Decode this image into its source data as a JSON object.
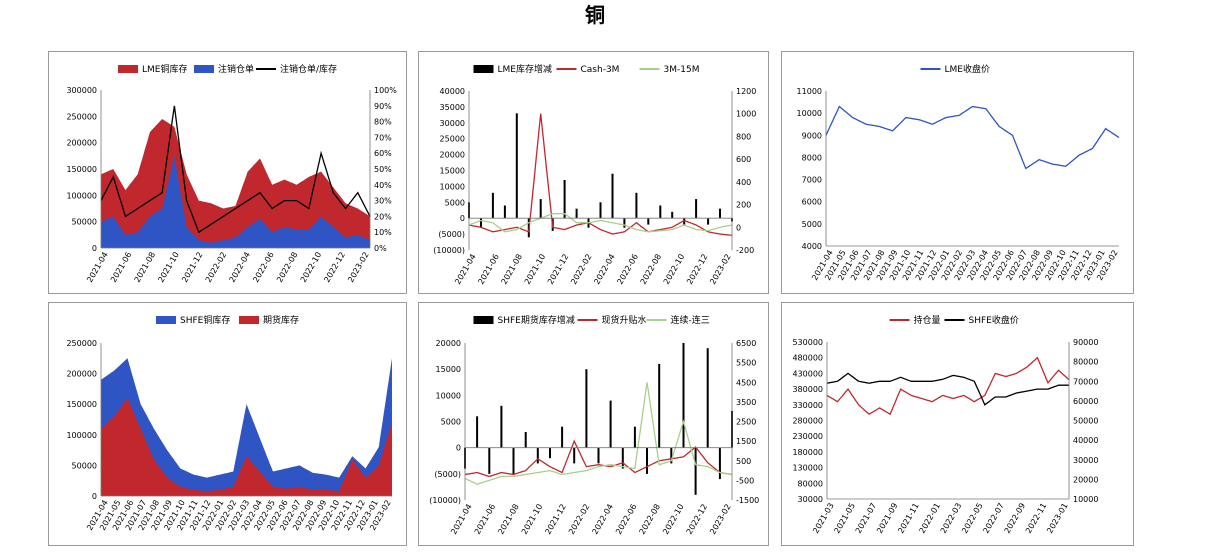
{
  "page": {
    "title": "铜"
  },
  "colors": {
    "red": "#c0282e",
    "blue": "#2f55c4",
    "black": "#000000",
    "green": "#a8d08d"
  },
  "chart_data": [
    {
      "id": "c1",
      "type": "area",
      "legend": [
        "LME铜库存",
        "注销仓单",
        "注销仓单/库存"
      ],
      "legend_position": "top",
      "x_ticks": [
        "2021-04",
        "2021-06",
        "2021-08",
        "2021-10",
        "2021-12",
        "2022-02",
        "2022-04",
        "2022-06",
        "2022-08",
        "2022-10",
        "2022-12",
        "2023-02"
      ],
      "y_ticks": [
        "300000",
        "250000",
        "200000",
        "150000",
        "100000",
        "50000",
        "0"
      ],
      "y2_ticks": [
        "100%",
        "90%",
        "80%",
        "70%",
        "60%",
        "50%",
        "40%",
        "30%",
        "20%",
        "10%",
        "0%"
      ],
      "ylim": [
        0,
        300000
      ],
      "y2lim": [
        0,
        100
      ],
      "x": [
        "2021-04",
        "2021-05",
        "2021-06",
        "2021-07",
        "2021-08",
        "2021-09",
        "2021-10",
        "2021-11",
        "2021-12",
        "2022-01",
        "2022-02",
        "2022-03",
        "2022-04",
        "2022-05",
        "2022-06",
        "2022-07",
        "2022-08",
        "2022-09",
        "2022-10",
        "2022-11",
        "2022-12",
        "2023-01",
        "2023-02"
      ],
      "series": [
        {
          "name": "LME铜库存",
          "kind": "area",
          "values": [
            140000,
            150000,
            110000,
            140000,
            220000,
            245000,
            230000,
            140000,
            90000,
            85000,
            75000,
            80000,
            145000,
            170000,
            120000,
            130000,
            120000,
            135000,
            145000,
            115000,
            85000,
            75000,
            60000
          ]
        },
        {
          "name": "注销仓单",
          "kind": "area",
          "values": [
            50000,
            60000,
            25000,
            30000,
            60000,
            75000,
            175000,
            40000,
            15000,
            10000,
            15000,
            20000,
            40000,
            55000,
            30000,
            40000,
            35000,
            35000,
            60000,
            40000,
            20000,
            25000,
            15000
          ]
        },
        {
          "name": "注销仓单/库存",
          "kind": "line",
          "axis": "right",
          "values": [
            30,
            45,
            20,
            25,
            30,
            35,
            90,
            30,
            10,
            15,
            20,
            25,
            30,
            35,
            25,
            30,
            30,
            25,
            60,
            35,
            25,
            35,
            20
          ]
        }
      ]
    },
    {
      "id": "c2",
      "type": "bar",
      "legend": [
        "LME库存增减",
        "Cash-3M",
        "3M-15M"
      ],
      "legend_position": "top",
      "x_ticks": [
        "2021-04",
        "2021-06",
        "2021-08",
        "2021-10",
        "2021-12",
        "2022-02",
        "2022-04",
        "2022-06",
        "2022-08",
        "2022-10",
        "2022-12",
        "2023-02"
      ],
      "y_ticks": [
        "40000",
        "35000",
        "30000",
        "25000",
        "20000",
        "15000",
        "10000",
        "5000",
        "0",
        "(5000)",
        "(10000)"
      ],
      "y2_ticks": [
        "1200",
        "1000",
        "800",
        "600",
        "400",
        "200",
        "0",
        "-200"
      ],
      "ylim": [
        -10000,
        40000
      ],
      "y2lim": [
        -200,
        1200
      ],
      "x": [
        "2021-04",
        "2021-05",
        "2021-06",
        "2021-07",
        "2021-08",
        "2021-09",
        "2021-10",
        "2021-11",
        "2021-12",
        "2022-01",
        "2022-02",
        "2022-03",
        "2022-04",
        "2022-05",
        "2022-06",
        "2022-07",
        "2022-08",
        "2022-09",
        "2022-10",
        "2022-11",
        "2022-12",
        "2023-01",
        "2023-02"
      ],
      "series": [
        {
          "name": "LME库存增减",
          "kind": "bar",
          "values": [
            5000,
            -3000,
            8000,
            4000,
            33000,
            -6000,
            6000,
            -4000,
            12000,
            3000,
            -3000,
            5000,
            14000,
            -3000,
            8000,
            -2000,
            4000,
            2000,
            -2000,
            6000,
            -2000,
            3000,
            -1000
          ]
        },
        {
          "name": "Cash-3M",
          "kind": "line",
          "axis": "right",
          "values": [
            20,
            0,
            -40,
            -20,
            0,
            -40,
            1000,
            0,
            -20,
            20,
            40,
            -20,
            -60,
            -40,
            40,
            -40,
            -20,
            0,
            60,
            20,
            -40,
            -60,
            -70
          ]
        },
        {
          "name": "3M-15M",
          "kind": "line",
          "axis": "right",
          "values": [
            20,
            60,
            40,
            -40,
            -20,
            40,
            80,
            120,
            120,
            40,
            40,
            60,
            40,
            20,
            -20,
            -40,
            -30,
            -20,
            20,
            -20,
            -30,
            0,
            20
          ]
        }
      ]
    },
    {
      "id": "c3",
      "type": "line",
      "legend": [
        "LME收盘价"
      ],
      "legend_position": "top",
      "x_ticks": [
        "2021-04",
        "2021-05",
        "2021-06",
        "2021-07",
        "2021-08",
        "2021-09",
        "2021-10",
        "2021-11",
        "2021-12",
        "2022-01",
        "2022-02",
        "2022-03",
        "2022-04",
        "2022-05",
        "2022-06",
        "2022-07",
        "2022-08",
        "2022-09",
        "2022-10",
        "2022-11",
        "2022-12",
        "2023-01",
        "2023-02"
      ],
      "y_ticks": [
        "11000",
        "10000",
        "9000",
        "8000",
        "7000",
        "6000",
        "5000",
        "4000"
      ],
      "ylim": [
        4000,
        11000
      ],
      "x": [
        "2021-04",
        "2021-05",
        "2021-06",
        "2021-07",
        "2021-08",
        "2021-09",
        "2021-10",
        "2021-11",
        "2021-12",
        "2022-01",
        "2022-02",
        "2022-03",
        "2022-04",
        "2022-05",
        "2022-06",
        "2022-07",
        "2022-08",
        "2022-09",
        "2022-10",
        "2022-11",
        "2022-12",
        "2023-01",
        "2023-02"
      ],
      "series": [
        {
          "name": "LME收盘价",
          "kind": "line",
          "values": [
            9000,
            10300,
            9800,
            9500,
            9400,
            9200,
            9800,
            9700,
            9500,
            9800,
            9900,
            10300,
            10200,
            9400,
            9000,
            7500,
            7900,
            7700,
            7600,
            8100,
            8400,
            9300,
            8900
          ]
        }
      ]
    },
    {
      "id": "c4",
      "type": "area",
      "legend": [
        "SHFE铜库存",
        "期货库存"
      ],
      "legend_position": "top",
      "x_ticks": [
        "2021-04",
        "2021-05",
        "2021-06",
        "2021-07",
        "2021-08",
        "2021-09",
        "2021-10",
        "2021-11",
        "2021-12",
        "2022-01",
        "2022-02",
        "2022-03",
        "2022-04",
        "2022-05",
        "2022-06",
        "2022-07",
        "2022-08",
        "2022-09",
        "2022-10",
        "2022-11",
        "2022-12",
        "2023-01",
        "2023-02"
      ],
      "y_ticks": [
        "250000",
        "200000",
        "150000",
        "100000",
        "50000",
        "0"
      ],
      "ylim": [
        0,
        250000
      ],
      "x": [
        "2021-04",
        "2021-05",
        "2021-06",
        "2021-07",
        "2021-08",
        "2021-09",
        "2021-10",
        "2021-11",
        "2021-12",
        "2022-01",
        "2022-02",
        "2022-03",
        "2022-04",
        "2022-05",
        "2022-06",
        "2022-07",
        "2022-08",
        "2022-09",
        "2022-10",
        "2022-11",
        "2022-12",
        "2023-01",
        "2023-02"
      ],
      "series": [
        {
          "name": "SHFE铜库存",
          "kind": "area",
          "values": [
            190000,
            205000,
            225000,
            150000,
            110000,
            75000,
            45000,
            35000,
            30000,
            35000,
            40000,
            150000,
            95000,
            40000,
            45000,
            50000,
            38000,
            35000,
            30000,
            65000,
            45000,
            80000,
            225000
          ]
        },
        {
          "name": "期货库存",
          "kind": "area",
          "values": [
            110000,
            130000,
            160000,
            110000,
            60000,
            30000,
            15000,
            10000,
            8000,
            10000,
            15000,
            65000,
            40000,
            15000,
            12000,
            15000,
            10000,
            10000,
            8000,
            60000,
            30000,
            50000,
            120000
          ]
        }
      ]
    },
    {
      "id": "c5",
      "type": "bar",
      "legend": [
        "SHFE期货库存增减",
        "现货升贴水",
        "连续-连三"
      ],
      "legend_position": "top",
      "x_ticks": [
        "2021-04",
        "2021-06",
        "2021-08",
        "2021-10",
        "2021-12",
        "2022-02",
        "2022-04",
        "2022-06",
        "2022-08",
        "2022-10",
        "2022-12",
        "2023-02"
      ],
      "y_ticks": [
        "20000",
        "15000",
        "10000",
        "5000",
        "0",
        "(5000)",
        "(10000)"
      ],
      "y2_ticks": [
        "6500",
        "5500",
        "4500",
        "3500",
        "2500",
        "1500",
        "500",
        "-500",
        "-1500"
      ],
      "ylim": [
        -10000,
        20000
      ],
      "y2lim": [
        -1500,
        6500
      ],
      "x": [
        "2021-04",
        "2021-05",
        "2021-06",
        "2021-07",
        "2021-08",
        "2021-09",
        "2021-10",
        "2021-11",
        "2021-12",
        "2022-01",
        "2022-02",
        "2022-03",
        "2022-04",
        "2022-05",
        "2022-06",
        "2022-07",
        "2022-08",
        "2022-09",
        "2022-10",
        "2022-11",
        "2022-12",
        "2023-01",
        "2023-02"
      ],
      "series": [
        {
          "name": "SHFE期货库存增减",
          "kind": "bar",
          "values": [
            -4000,
            6000,
            -5000,
            8000,
            -5000,
            3000,
            -3000,
            -2000,
            4000,
            -3000,
            15000,
            -3000,
            9000,
            -4000,
            4000,
            -5000,
            16000,
            -3000,
            20000,
            -9000,
            19000,
            -6000,
            7000
          ]
        },
        {
          "name": "现货升贴水",
          "kind": "line",
          "axis": "right",
          "values": [
            -200,
            -100,
            -300,
            -100,
            -200,
            0,
            600,
            200,
            -100,
            1500,
            200,
            300,
            200,
            400,
            -100,
            200,
            500,
            600,
            700,
            1200,
            400,
            -100,
            -200
          ]
        },
        {
          "name": "连续-连三",
          "kind": "line",
          "axis": "right",
          "values": [
            -400,
            -700,
            -500,
            -300,
            -300,
            -200,
            -100,
            0,
            -200,
            -100,
            0,
            200,
            300,
            200,
            100,
            4500,
            300,
            500,
            2500,
            300,
            200,
            -100,
            -200
          ]
        }
      ]
    },
    {
      "id": "c6",
      "type": "line",
      "legend": [
        "持仓量",
        "SHFE收盘价"
      ],
      "legend_position": "top",
      "x_ticks": [
        "2021-03",
        "2021-05",
        "2021-07",
        "2021-09",
        "2021-11",
        "2022-01",
        "2022-03",
        "2022-05",
        "2022-07",
        "2022-09",
        "2022-11",
        "2023-01"
      ],
      "y_ticks": [
        "530000",
        "480000",
        "430000",
        "380000",
        "330000",
        "280000",
        "230000",
        "180000",
        "130000",
        "80000",
        "30000"
      ],
      "y2_ticks": [
        "90000",
        "80000",
        "70000",
        "60000",
        "50000",
        "40000",
        "30000",
        "20000",
        "10000"
      ],
      "ylim": [
        30000,
        530000
      ],
      "y2lim": [
        10000,
        90000
      ],
      "x": [
        "2021-03",
        "2021-04",
        "2021-05",
        "2021-06",
        "2021-07",
        "2021-08",
        "2021-09",
        "2021-10",
        "2021-11",
        "2021-12",
        "2022-01",
        "2022-02",
        "2022-03",
        "2022-04",
        "2022-05",
        "2022-06",
        "2022-07",
        "2022-08",
        "2022-09",
        "2022-10",
        "2022-11",
        "2022-12",
        "2023-01",
        "2023-02"
      ],
      "series": [
        {
          "name": "持仓量",
          "kind": "line",
          "values": [
            360000,
            340000,
            380000,
            330000,
            300000,
            320000,
            300000,
            380000,
            360000,
            350000,
            340000,
            360000,
            350000,
            360000,
            340000,
            360000,
            430000,
            420000,
            430000,
            450000,
            480000,
            400000,
            440000,
            410000
          ]
        },
        {
          "name": "SHFE收盘价",
          "kind": "line",
          "axis": "right",
          "values": [
            69000,
            70000,
            74000,
            70000,
            69000,
            70000,
            70000,
            72000,
            70000,
            70000,
            70000,
            71000,
            73000,
            72000,
            70000,
            58000,
            62000,
            62000,
            64000,
            65000,
            66000,
            66000,
            68000,
            68000
          ]
        }
      ]
    }
  ]
}
